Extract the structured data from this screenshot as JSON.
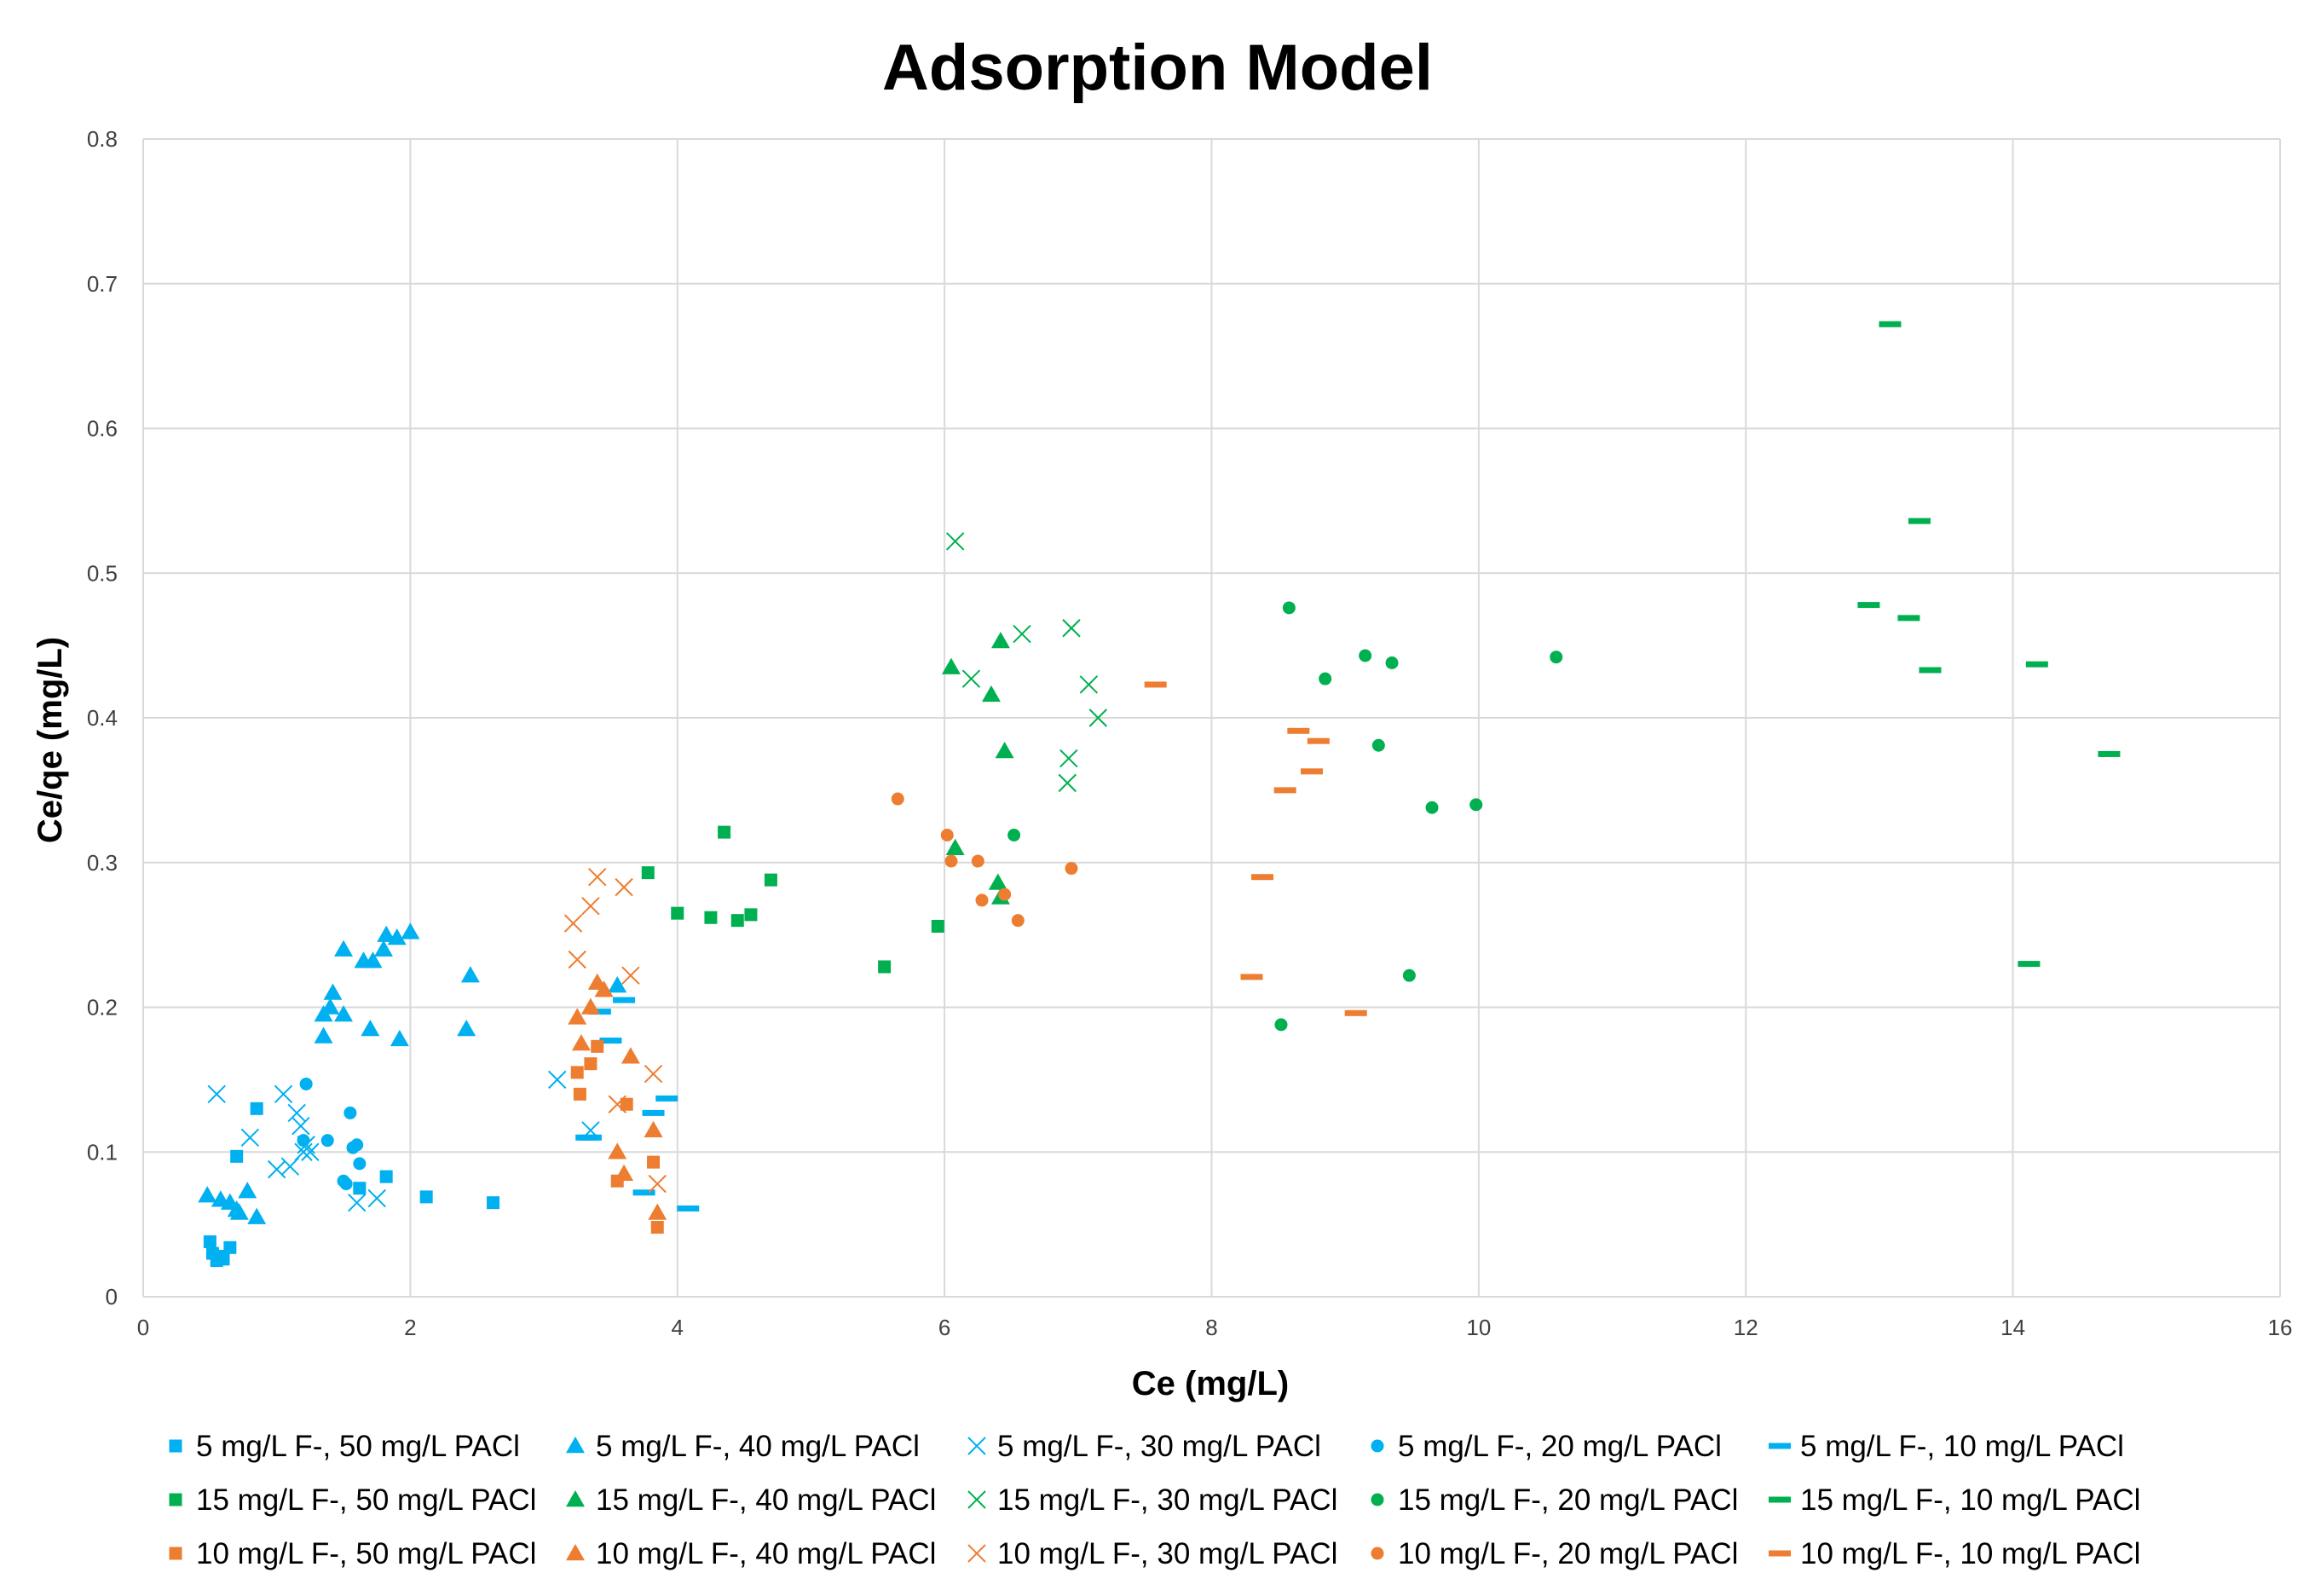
{
  "chart_data": {
    "type": "scatter",
    "title": "Adsorption Model",
    "xlabel": "Ce (mg/L)",
    "ylabel": "Ce/qe (mg/L)",
    "xlim": [
      0,
      16
    ],
    "ylim": [
      0,
      0.8
    ],
    "xticks": [
      "0",
      "2",
      "4",
      "6",
      "8",
      "10",
      "12",
      "14",
      "16"
    ],
    "yticks": [
      "0",
      "0.1",
      "0.2",
      "0.3",
      "0.4",
      "0.5",
      "0.6",
      "0.7",
      "0.8"
    ],
    "grid": "vertical and horizontal major gridlines",
    "legend_position": "bottom",
    "colors": {
      "blue": "#00B0F0",
      "green": "#00B050",
      "orange": "#ED7D31"
    },
    "series": [
      {
        "name": "5 mg/L F-, 50 mg/L PACl",
        "marker": "square",
        "color": "#00B0F0",
        "points": [
          [
            0.5,
            0.038
          ],
          [
            0.52,
            0.03
          ],
          [
            0.55,
            0.025
          ],
          [
            0.58,
            0.028
          ],
          [
            0.6,
            0.026
          ],
          [
            0.65,
            0.034
          ],
          [
            0.7,
            0.097
          ],
          [
            0.85,
            0.13
          ],
          [
            1.62,
            0.075
          ],
          [
            1.82,
            0.083
          ],
          [
            2.12,
            0.069
          ],
          [
            2.62,
            0.065
          ]
        ]
      },
      {
        "name": "5 mg/L F-, 40 mg/L PACl",
        "marker": "triangle",
        "color": "#00B0F0",
        "points": [
          [
            0.48,
            0.07
          ],
          [
            0.58,
            0.067
          ],
          [
            0.65,
            0.065
          ],
          [
            0.7,
            0.06
          ],
          [
            0.72,
            0.058
          ],
          [
            0.78,
            0.073
          ],
          [
            0.85,
            0.055
          ],
          [
            1.35,
            0.18
          ],
          [
            1.35,
            0.195
          ],
          [
            1.4,
            0.2
          ],
          [
            1.42,
            0.21
          ],
          [
            1.5,
            0.195
          ],
          [
            1.5,
            0.24
          ],
          [
            1.65,
            0.232
          ],
          [
            1.7,
            0.185
          ],
          [
            1.72,
            0.232
          ],
          [
            1.8,
            0.24
          ],
          [
            1.82,
            0.25
          ],
          [
            1.9,
            0.248
          ],
          [
            1.92,
            0.178
          ],
          [
            2.0,
            0.252
          ],
          [
            2.42,
            0.185
          ],
          [
            2.45,
            0.222
          ],
          [
            3.55,
            0.215
          ]
        ]
      },
      {
        "name": "5 mg/L F-, 30 mg/L PACl",
        "marker": "x",
        "color": "#00B0F0",
        "points": [
          [
            0.55,
            0.14
          ],
          [
            0.8,
            0.11
          ],
          [
            1.0,
            0.088
          ],
          [
            1.05,
            0.14
          ],
          [
            1.1,
            0.09
          ],
          [
            1.15,
            0.127
          ],
          [
            1.18,
            0.118
          ],
          [
            1.2,
            0.1
          ],
          [
            1.22,
            0.105
          ],
          [
            1.25,
            0.1
          ],
          [
            1.6,
            0.065
          ],
          [
            1.75,
            0.068
          ],
          [
            3.1,
            0.15
          ],
          [
            3.35,
            0.115
          ]
        ]
      },
      {
        "name": "5 mg/L F-, 20 mg/L PACl",
        "marker": "circle",
        "color": "#00B0F0",
        "points": [
          [
            1.2,
            0.108
          ],
          [
            1.22,
            0.147
          ],
          [
            1.38,
            0.108
          ],
          [
            1.5,
            0.08
          ],
          [
            1.52,
            0.078
          ],
          [
            1.55,
            0.127
          ],
          [
            1.57,
            0.103
          ],
          [
            1.6,
            0.105
          ],
          [
            1.62,
            0.092
          ]
        ]
      },
      {
        "name": "5 mg/L F-, 10 mg/L PACl",
        "marker": "dash",
        "color": "#00B0F0",
        "points": [
          [
            3.32,
            0.11
          ],
          [
            3.35,
            0.11
          ],
          [
            3.42,
            0.197
          ],
          [
            3.5,
            0.177
          ],
          [
            3.6,
            0.205
          ],
          [
            3.75,
            0.072
          ],
          [
            3.82,
            0.127
          ],
          [
            3.92,
            0.137
          ],
          [
            4.08,
            0.061
          ]
        ]
      },
      {
        "name": "15 mg/L F-, 50 mg/L PACl",
        "marker": "square",
        "color": "#00B050",
        "points": [
          [
            3.78,
            0.293
          ],
          [
            4.0,
            0.265
          ],
          [
            4.25,
            0.262
          ],
          [
            4.35,
            0.321
          ],
          [
            4.45,
            0.26
          ],
          [
            4.55,
            0.264
          ],
          [
            4.7,
            0.288
          ],
          [
            5.55,
            0.228
          ],
          [
            5.95,
            0.256
          ]
        ]
      },
      {
        "name": "15 mg/L F-, 40 mg/L PACl",
        "marker": "triangle",
        "color": "#00B050",
        "points": [
          [
            6.05,
            0.435
          ],
          [
            6.08,
            0.31
          ],
          [
            6.35,
            0.416
          ],
          [
            6.4,
            0.286
          ],
          [
            6.42,
            0.276
          ],
          [
            6.42,
            0.453
          ],
          [
            6.45,
            0.377
          ]
        ]
      },
      {
        "name": "15 mg/L F-, 30 mg/L PACl",
        "marker": "x",
        "color": "#00B050",
        "points": [
          [
            6.08,
            0.522
          ],
          [
            6.2,
            0.427
          ],
          [
            6.58,
            0.458
          ],
          [
            6.92,
            0.355
          ],
          [
            6.93,
            0.372
          ],
          [
            6.95,
            0.462
          ],
          [
            7.08,
            0.423
          ],
          [
            7.15,
            0.4
          ]
        ]
      },
      {
        "name": "15 mg/L F-, 20 mg/L PACl",
        "marker": "circle",
        "color": "#00B050",
        "points": [
          [
            6.52,
            0.319
          ],
          [
            8.52,
            0.188
          ],
          [
            8.58,
            0.476
          ],
          [
            8.85,
            0.427
          ],
          [
            9.15,
            0.443
          ],
          [
            9.25,
            0.381
          ],
          [
            9.35,
            0.438
          ],
          [
            9.48,
            0.222
          ],
          [
            9.65,
            0.338
          ],
          [
            9.98,
            0.34
          ],
          [
            10.58,
            0.442
          ]
        ]
      },
      {
        "name": "15 mg/L F-, 10 mg/L PACl",
        "marker": "dash",
        "color": "#00B050",
        "points": [
          [
            12.92,
            0.478
          ],
          [
            13.08,
            0.672
          ],
          [
            13.22,
            0.469
          ],
          [
            13.3,
            0.536
          ],
          [
            13.38,
            0.433
          ],
          [
            14.12,
            0.23
          ],
          [
            14.18,
            0.437
          ],
          [
            14.72,
            0.375
          ]
        ]
      },
      {
        "name": "10 mg/L F-, 50 mg/L PACl",
        "marker": "square",
        "color": "#ED7D31",
        "points": [
          [
            3.25,
            0.155
          ],
          [
            3.27,
            0.14
          ],
          [
            3.35,
            0.161
          ],
          [
            3.4,
            0.173
          ],
          [
            3.55,
            0.08
          ],
          [
            3.62,
            0.133
          ],
          [
            3.82,
            0.093
          ],
          [
            3.85,
            0.048
          ]
        ]
      },
      {
        "name": "10 mg/L F-, 40 mg/L PACl",
        "marker": "triangle",
        "color": "#ED7D31",
        "points": [
          [
            3.25,
            0.193
          ],
          [
            3.28,
            0.175
          ],
          [
            3.35,
            0.2
          ],
          [
            3.4,
            0.217
          ],
          [
            3.45,
            0.212
          ],
          [
            3.55,
            0.1
          ],
          [
            3.6,
            0.085
          ],
          [
            3.65,
            0.166
          ],
          [
            3.82,
            0.115
          ],
          [
            3.85,
            0.058
          ]
        ]
      },
      {
        "name": "10 mg/L F-, 30 mg/L PACl",
        "marker": "x",
        "color": "#ED7D31",
        "points": [
          [
            3.22,
            0.258
          ],
          [
            3.25,
            0.233
          ],
          [
            3.35,
            0.27
          ],
          [
            3.4,
            0.29
          ],
          [
            3.55,
            0.133
          ],
          [
            3.6,
            0.283
          ],
          [
            3.65,
            0.222
          ],
          [
            3.82,
            0.154
          ],
          [
            3.85,
            0.078
          ]
        ]
      },
      {
        "name": "10 mg/L F-, 20 mg/L PACl",
        "marker": "circle",
        "color": "#ED7D31",
        "points": [
          [
            5.65,
            0.344
          ],
          [
            6.02,
            0.319
          ],
          [
            6.05,
            0.301
          ],
          [
            6.25,
            0.301
          ],
          [
            6.28,
            0.274
          ],
          [
            6.45,
            0.278
          ],
          [
            6.55,
            0.26
          ],
          [
            6.95,
            0.296
          ]
        ]
      },
      {
        "name": "10 mg/L F-, 10 mg/L PACl",
        "marker": "dash",
        "color": "#ED7D31",
        "points": [
          [
            7.58,
            0.423
          ],
          [
            8.3,
            0.221
          ],
          [
            8.38,
            0.29
          ],
          [
            8.55,
            0.35
          ],
          [
            8.65,
            0.391
          ],
          [
            8.75,
            0.363
          ],
          [
            8.8,
            0.384
          ],
          [
            9.08,
            0.196
          ]
        ]
      }
    ]
  }
}
